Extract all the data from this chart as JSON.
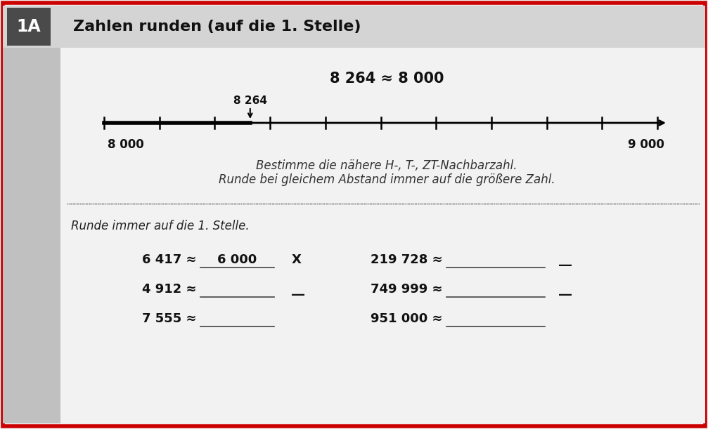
{
  "title": "Zahlen runden (auf die 1. Stelle)",
  "label_id": "1A",
  "bg_color": "#eeeeee",
  "header_bg": "#d4d4d4",
  "sidebar_color": "#c0c0c0",
  "content_color": "#f2f2f2",
  "border_color": "#cc0000",
  "label_box_color": "#4a4a4a",
  "number_line_label": "8 264",
  "example_text": "8 264 ≈ 8 000",
  "instruction_line1": "Bestimme die nähere H-, T-, ZT-Nachbarzahl.",
  "instruction_line2": "Runde bei gleichem Abstand immer auf die größere Zahl.",
  "instruction2": "Runde immer auf die 1. Stelle.",
  "nl_left_label": "8 000",
  "nl_right_label": "9 000",
  "exercises_left": [
    {
      "problem": "6 417 ≈",
      "answer": "6 000",
      "mark": "X"
    },
    {
      "problem": "4 912 ≈",
      "answer": "",
      "mark": "__"
    },
    {
      "problem": "7 555 ≈",
      "answer": "",
      "mark": ""
    }
  ],
  "exercises_right": [
    {
      "problem": "219 728 ≈",
      "answer": "",
      "mark": "__"
    },
    {
      "problem": "749 999 ≈",
      "answer": "",
      "mark": "__"
    },
    {
      "problem": "951 000 ≈",
      "answer": "",
      "mark": ""
    }
  ]
}
